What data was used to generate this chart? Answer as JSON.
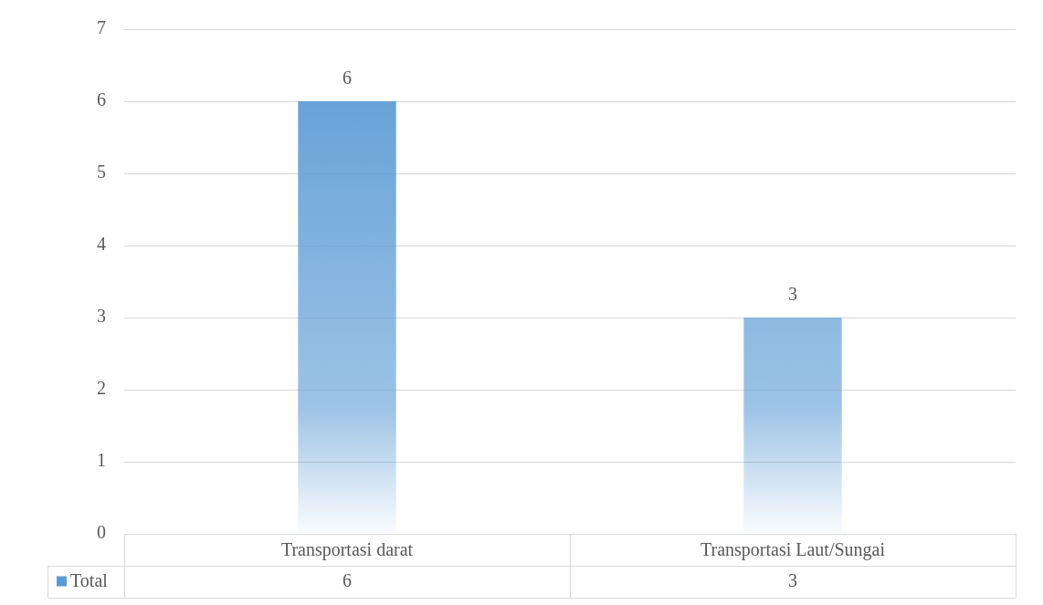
{
  "chart_data": {
    "type": "bar",
    "categories": [
      "Transportasi darat",
      "Transportasi Laut/Sungai"
    ],
    "series": [
      {
        "name": "Total",
        "color": "#5b9bd5",
        "values": [
          6,
          3
        ],
        "value_labels": [
          "6",
          "3"
        ]
      }
    ],
    "ylim": [
      0,
      7
    ],
    "yticks": [
      0,
      1,
      2,
      3,
      4,
      5,
      6,
      7
    ],
    "grid": "y",
    "legend": "bottom",
    "annotations": [
      "6",
      "3"
    ]
  }
}
